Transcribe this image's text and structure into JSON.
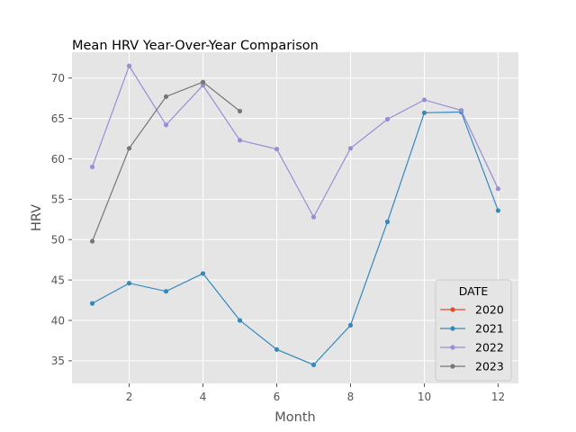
{
  "chart_data": {
    "type": "line",
    "title": "Mean  HRV Year-Over-Year Comparison",
    "xlabel": "Month",
    "ylabel": "HRV",
    "xlim": [
      0.45,
      12.55
    ],
    "ylim": [
      32.2,
      73.2
    ],
    "x_ticks": [
      2,
      4,
      6,
      8,
      10,
      12
    ],
    "y_ticks": [
      35,
      40,
      45,
      50,
      55,
      60,
      65,
      70
    ],
    "grid": true,
    "style": "ggplot",
    "legend": {
      "title": "DATE",
      "placement": "lower-right"
    },
    "series": [
      {
        "name": "2020",
        "color": "#E24A33",
        "x": [],
        "values": []
      },
      {
        "name": "2021",
        "color": "#348ABD",
        "x": [
          1,
          2,
          3,
          4,
          5,
          6,
          7,
          8,
          9,
          10,
          11,
          12
        ],
        "values": [
          42.1,
          44.6,
          43.6,
          45.8,
          40.0,
          36.4,
          34.5,
          39.4,
          52.2,
          65.7,
          65.8,
          53.6
        ]
      },
      {
        "name": "2022",
        "color": "#988ED5",
        "x": [
          1,
          2,
          3,
          4,
          5,
          6,
          7,
          8,
          9,
          10,
          11,
          12
        ],
        "values": [
          59.0,
          71.5,
          64.2,
          69.1,
          62.3,
          61.2,
          52.8,
          61.3,
          64.9,
          67.3,
          66.0,
          56.3
        ]
      },
      {
        "name": "2023",
        "color": "#777777",
        "x": [
          1,
          2,
          3,
          4,
          5
        ],
        "values": [
          49.8,
          61.3,
          67.7,
          69.5,
          65.9
        ]
      }
    ]
  }
}
